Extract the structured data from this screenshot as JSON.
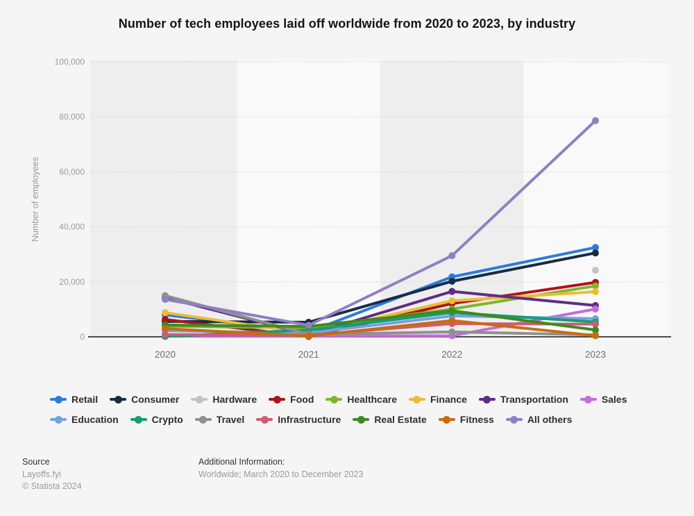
{
  "title": "Number of tech employees laid off worldwide from 2020 to 2023, by industry",
  "y_axis": {
    "title": "Number of employees",
    "tick_values": [
      0,
      20000,
      40000,
      60000,
      80000,
      100000
    ],
    "tick_labels": [
      "0",
      "20,000",
      "40,000",
      "60,000",
      "80,000",
      "100,000"
    ]
  },
  "chart_data": {
    "type": "line",
    "categories": [
      "2020",
      "2021",
      "2022",
      "2023"
    ],
    "ylim": [
      0,
      100000
    ],
    "grid": "horizontal-dotted",
    "legend_position": "bottom",
    "xlabel": "",
    "ylabel": "Number of employees",
    "series": [
      {
        "name": "Retail",
        "color": "#2b7cd9",
        "values": [
          8000,
          1800,
          21800,
          32500
        ]
      },
      {
        "name": "Consumer",
        "color": "#1a2b45",
        "values": [
          5600,
          5300,
          20200,
          30500
        ]
      },
      {
        "name": "Hardware",
        "color": "#c3c3c3",
        "values": [
          null,
          null,
          null,
          24200
        ]
      },
      {
        "name": "Food",
        "color": "#b01218",
        "values": [
          6300,
          100,
          12100,
          19800
        ]
      },
      {
        "name": "Healthcare",
        "color": "#7eb72c",
        "values": [
          3900,
          3200,
          10100,
          18500
        ]
      },
      {
        "name": "Finance",
        "color": "#eebb38",
        "values": [
          8800,
          1200,
          13100,
          16400
        ]
      },
      {
        "name": "Transportation",
        "color": "#5e2e84",
        "values": [
          14300,
          800,
          16500,
          11400
        ]
      },
      {
        "name": "Sales",
        "color": "#c56cd9",
        "values": [
          300,
          300,
          400,
          10100
        ]
      },
      {
        "name": "Education",
        "color": "#72a3dc",
        "values": [
          2200,
          1400,
          7600,
          6600
        ]
      },
      {
        "name": "Crypto",
        "color": "#179c77",
        "values": [
          150,
          2500,
          8800,
          5400
        ]
      },
      {
        "name": "Travel",
        "color": "#909090",
        "values": [
          15000,
          900,
          1800,
          700
        ]
      },
      {
        "name": "Infrastructure",
        "color": "#cd5c78",
        "values": [
          800,
          600,
          4800,
          4600
        ]
      },
      {
        "name": "Real Estate",
        "color": "#3f8a1e",
        "values": [
          4300,
          3800,
          9500,
          2500
        ]
      },
      {
        "name": "Fitness",
        "color": "#cb6a12",
        "values": [
          3000,
          300,
          5900,
          400
        ]
      },
      {
        "name": "All others",
        "color": "#8e80c3",
        "values": [
          13600,
          4200,
          29500,
          78600
        ]
      }
    ]
  },
  "footer": {
    "source_label": "Source",
    "source_name": "Layoffs.fyi",
    "copyright": "© Statista 2024",
    "additional_label": "Additional Information:",
    "additional_text": "Worldwide; March 2020 to December 2023"
  }
}
